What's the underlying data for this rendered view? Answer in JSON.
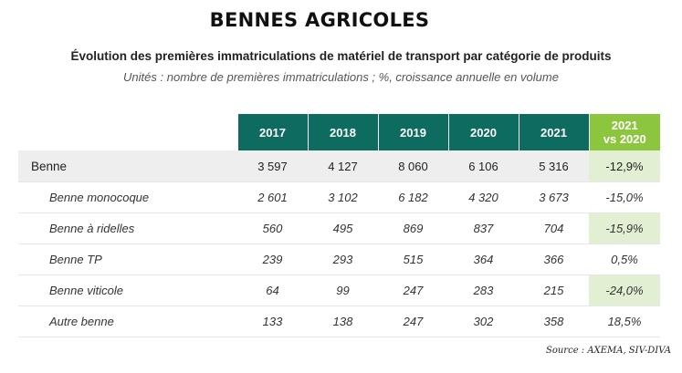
{
  "title": "BENNES AGRICOLES",
  "subtitle": "Évolution des premières immatriculations de matériel de transport par catégorie de produits",
  "units": "Unités : nombre de premières immatriculations ; %, croissance annuelle en volume",
  "table": {
    "headers": [
      "2017",
      "2018",
      "2019",
      "2020",
      "2021"
    ],
    "var_header_line1": "2021",
    "var_header_line2": "vs 2020",
    "rows": [
      {
        "label": "Benne",
        "values": [
          "3 597",
          "4 127",
          "8 060",
          "6 106",
          "5 316"
        ],
        "variation": "-12,9%"
      },
      {
        "label": "Benne monocoque",
        "values": [
          "2 601",
          "3 102",
          "6 182",
          "4 320",
          "3 673"
        ],
        "variation": "-15,0%"
      },
      {
        "label": "Benne à ridelles",
        "values": [
          "560",
          "495",
          "869",
          "837",
          "704"
        ],
        "variation": "-15,9%"
      },
      {
        "label": "Benne TP",
        "values": [
          "239",
          "293",
          "515",
          "364",
          "366"
        ],
        "variation": "0,5%"
      },
      {
        "label": "Benne viticole",
        "values": [
          "64",
          "99",
          "247",
          "283",
          "215"
        ],
        "variation": "-24,0%"
      },
      {
        "label": "Autre benne",
        "values": [
          "133",
          "138",
          "247",
          "302",
          "358"
        ],
        "variation": "18,5%"
      }
    ]
  },
  "source": "Source : AXEMA, SIV-DIVA",
  "colors": {
    "header_bg": "#0d6b5f",
    "variation_header_bg": "#8cc63f",
    "highlight_bg": "#e3efd3"
  }
}
